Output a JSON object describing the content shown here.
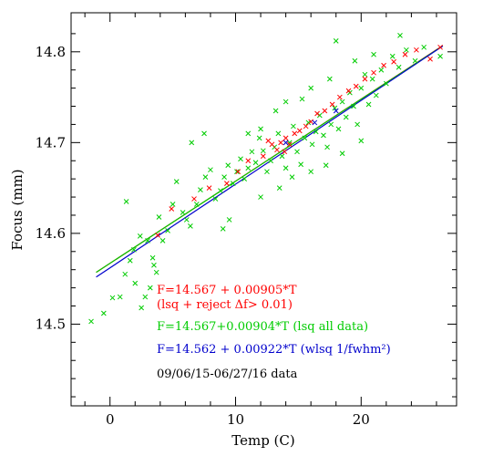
{
  "chart_data": {
    "type": "scatter",
    "xlabel": "Temp (C)",
    "ylabel": "Focus (mm)",
    "xlim": [
      -3.1,
      27.6
    ],
    "ylim": [
      14.41,
      14.843
    ],
    "x_ticks": [
      0,
      10,
      20
    ],
    "y_ticks": [
      14.5,
      14.6,
      14.7,
      14.8
    ],
    "x_tick_labels": [
      "0",
      "10",
      "20"
    ],
    "y_tick_labels": [
      "14.5",
      "14.6",
      "14.7",
      "14.8"
    ],
    "grid": false,
    "series": [
      {
        "color": "#00cc00",
        "marker": "x",
        "points": [
          [
            -1.5,
            14.503
          ],
          [
            -0.5,
            14.512
          ],
          [
            0.2,
            14.529
          ],
          [
            0.8,
            14.53
          ],
          [
            1.2,
            14.555
          ],
          [
            1.6,
            14.57
          ],
          [
            2.0,
            14.545
          ],
          [
            2.5,
            14.518
          ],
          [
            2.8,
            14.53
          ],
          [
            3.2,
            14.54
          ],
          [
            3.5,
            14.565
          ],
          [
            3.7,
            14.557
          ],
          [
            1.3,
            14.635
          ],
          [
            1.9,
            14.582
          ],
          [
            2.4,
            14.597
          ],
          [
            3.0,
            14.592
          ],
          [
            3.4,
            14.573
          ],
          [
            3.9,
            14.618
          ],
          [
            4.2,
            14.592
          ],
          [
            4.6,
            14.603
          ],
          [
            5.0,
            14.632
          ],
          [
            5.3,
            14.657
          ],
          [
            5.8,
            14.623
          ],
          [
            6.1,
            14.615
          ],
          [
            6.4,
            14.608
          ],
          [
            6.9,
            14.632
          ],
          [
            7.2,
            14.648
          ],
          [
            7.6,
            14.662
          ],
          [
            8.0,
            14.67
          ],
          [
            8.4,
            14.638
          ],
          [
            8.8,
            14.647
          ],
          [
            9.1,
            14.662
          ],
          [
            9.4,
            14.675
          ],
          [
            9.8,
            14.655
          ],
          [
            10.1,
            14.668
          ],
          [
            10.4,
            14.682
          ],
          [
            10.7,
            14.66
          ],
          [
            11.0,
            14.672
          ],
          [
            11.3,
            14.69
          ],
          [
            11.6,
            14.678
          ],
          [
            11.9,
            14.705
          ],
          [
            12.2,
            14.691
          ],
          [
            12.5,
            14.668
          ],
          [
            12.8,
            14.68
          ],
          [
            13.1,
            14.695
          ],
          [
            13.4,
            14.71
          ],
          [
            13.7,
            14.685
          ],
          [
            14.0,
            14.672
          ],
          [
            14.3,
            14.7
          ],
          [
            14.6,
            14.718
          ],
          [
            14.9,
            14.69
          ],
          [
            15.2,
            14.676
          ],
          [
            15.5,
            14.705
          ],
          [
            15.8,
            14.722
          ],
          [
            16.1,
            14.698
          ],
          [
            16.4,
            14.712
          ],
          [
            16.7,
            14.73
          ],
          [
            17.0,
            14.708
          ],
          [
            17.3,
            14.695
          ],
          [
            17.6,
            14.72
          ],
          [
            17.9,
            14.738
          ],
          [
            18.2,
            14.715
          ],
          [
            18.5,
            14.745
          ],
          [
            18.8,
            14.728
          ],
          [
            19.1,
            14.755
          ],
          [
            19.4,
            14.74
          ],
          [
            19.7,
            14.72
          ],
          [
            20.0,
            14.76
          ],
          [
            20.3,
            14.775
          ],
          [
            20.6,
            14.742
          ],
          [
            20.9,
            14.77
          ],
          [
            21.2,
            14.752
          ],
          [
            21.6,
            14.78
          ],
          [
            22.0,
            14.765
          ],
          [
            22.5,
            14.795
          ],
          [
            23.0,
            14.783
          ],
          [
            23.6,
            14.802
          ],
          [
            24.3,
            14.79
          ],
          [
            25.0,
            14.805
          ],
          [
            26.3,
            14.795
          ],
          [
            6.5,
            14.7
          ],
          [
            7.5,
            14.71
          ],
          [
            9.0,
            14.605
          ],
          [
            9.5,
            14.615
          ],
          [
            11.0,
            14.71
          ],
          [
            12.0,
            14.715
          ],
          [
            13.2,
            14.735
          ],
          [
            14.0,
            14.745
          ],
          [
            15.3,
            14.748
          ],
          [
            16.0,
            14.76
          ],
          [
            17.5,
            14.77
          ],
          [
            18.0,
            14.812
          ],
          [
            19.5,
            14.79
          ],
          [
            21.0,
            14.797
          ],
          [
            23.1,
            14.818
          ],
          [
            12.0,
            14.64
          ],
          [
            13.5,
            14.65
          ],
          [
            14.5,
            14.662
          ],
          [
            16.0,
            14.668
          ],
          [
            17.2,
            14.675
          ],
          [
            18.5,
            14.688
          ],
          [
            20.0,
            14.702
          ]
        ]
      },
      {
        "color": "#ff0000",
        "marker": "x",
        "points": [
          [
            3.8,
            14.598
          ],
          [
            4.9,
            14.627
          ],
          [
            6.7,
            14.638
          ],
          [
            7.9,
            14.65
          ],
          [
            9.3,
            14.655
          ],
          [
            10.2,
            14.668
          ],
          [
            11.0,
            14.68
          ],
          [
            12.2,
            14.685
          ],
          [
            12.9,
            14.698
          ],
          [
            13.3,
            14.692
          ],
          [
            13.6,
            14.7
          ],
          [
            14.0,
            14.705
          ],
          [
            14.3,
            14.698
          ],
          [
            14.7,
            14.71
          ],
          [
            15.1,
            14.713
          ],
          [
            15.6,
            14.718
          ],
          [
            16.0,
            14.723
          ],
          [
            16.5,
            14.732
          ],
          [
            17.1,
            14.735
          ],
          [
            17.7,
            14.742
          ],
          [
            18.3,
            14.75
          ],
          [
            19.0,
            14.757
          ],
          [
            19.6,
            14.762
          ],
          [
            20.3,
            14.77
          ],
          [
            21.0,
            14.777
          ],
          [
            21.8,
            14.785
          ],
          [
            22.6,
            14.789
          ],
          [
            23.5,
            14.797
          ],
          [
            24.4,
            14.802
          ],
          [
            25.5,
            14.792
          ],
          [
            26.3,
            14.805
          ],
          [
            13.9,
            14.69
          ],
          [
            12.6,
            14.702
          ]
        ]
      },
      {
        "color": "#0000cc",
        "marker": "x",
        "points": [
          [
            14.0,
            14.7
          ],
          [
            16.3,
            14.722
          ],
          [
            18.0,
            14.735
          ]
        ]
      }
    ],
    "fit_lines": [
      {
        "color": "#ff0000",
        "intercept": 14.567,
        "slope": 0.00905
      },
      {
        "color": "#00cc00",
        "intercept": 14.567,
        "slope": 0.00904
      },
      {
        "color": "#0000cc",
        "intercept": 14.562,
        "slope": 0.00922
      }
    ],
    "annotations": [
      {
        "text": "F=14.567 + 0.00905*T",
        "color": "#ff0000"
      },
      {
        "text": "(lsq + reject Δf> 0.01)",
        "color": "#ff0000"
      },
      {
        "text": "F=14.567+0.00904*T (lsq all data)",
        "color": "#00cc00"
      },
      {
        "text": "F=14.562 + 0.00922*T (wlsq 1/fwhm²)",
        "color": "#0000cc"
      },
      {
        "text": "09/06/15-06/27/16 data",
        "color": "#000000"
      }
    ]
  }
}
